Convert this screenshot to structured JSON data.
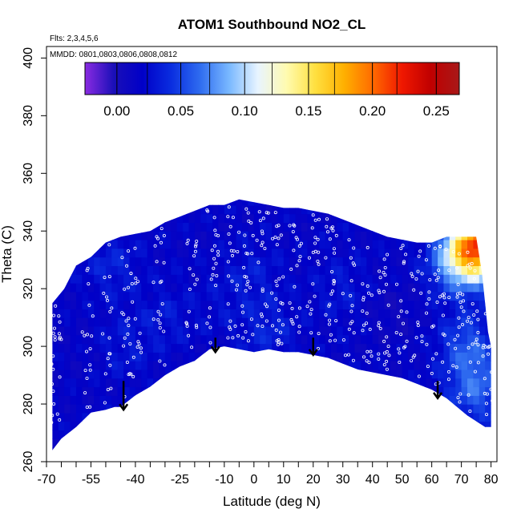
{
  "chart_data": {
    "type": "heatmap",
    "title": "ATOM1 Southbound NO2_CL",
    "annotations": {
      "flights": "Flts: 2,3,4,5,6",
      "dates": "MMDD: 0801,0803,0806,0808,0812"
    },
    "xlabel": "Latitude (deg N)",
    "ylabel": "Theta (C)",
    "xlim": [
      -70,
      82
    ],
    "ylim": [
      260,
      404
    ],
    "x_ticks": [
      -70,
      -55,
      -40,
      -25,
      -10,
      0,
      10,
      20,
      30,
      40,
      50,
      60,
      70,
      80
    ],
    "x_tick_labels": [
      "-70",
      "-55",
      "-40",
      "-25",
      "-10",
      "0",
      "10",
      "20",
      "30",
      "40",
      "50",
      "60",
      "70",
      "80"
    ],
    "x_minor_ticks": [
      -65,
      -60,
      -50,
      -45,
      -35,
      -30,
      -20,
      -15,
      -5,
      5,
      15,
      25,
      35,
      45,
      55,
      65,
      75
    ],
    "y_ticks": [
      260,
      280,
      300,
      320,
      340,
      360,
      380,
      400
    ],
    "y_tick_labels": [
      "260",
      "280",
      "300",
      "320",
      "340",
      "360",
      "380",
      "400"
    ],
    "colorbar": {
      "ticks": [
        0.0,
        0.05,
        0.1,
        0.15,
        0.2,
        0.25
      ],
      "tick_labels": [
        "0.00",
        "0.05",
        "0.10",
        "0.15",
        "0.20",
        "0.25"
      ],
      "range": [
        -0.025,
        0.268
      ],
      "colors": [
        "#8a2be2",
        "#1a0fb8",
        "#0000c8",
        "#0a2ee0",
        "#2f6cf0",
        "#79b8ff",
        "#e8f4ff",
        "#fffbb0",
        "#ffe040",
        "#ffb000",
        "#ff6a00",
        "#f01800",
        "#c00000",
        "#a81818"
      ]
    },
    "upper_boundary": [
      {
        "x": -68,
        "y": 315
      },
      {
        "x": -64,
        "y": 320
      },
      {
        "x": -60,
        "y": 328
      },
      {
        "x": -55,
        "y": 331
      },
      {
        "x": -50,
        "y": 336
      },
      {
        "x": -45,
        "y": 338
      },
      {
        "x": -40,
        "y": 339
      },
      {
        "x": -35,
        "y": 340
      },
      {
        "x": -30,
        "y": 343
      },
      {
        "x": -25,
        "y": 345
      },
      {
        "x": -20,
        "y": 347
      },
      {
        "x": -15,
        "y": 349
      },
      {
        "x": -10,
        "y": 349
      },
      {
        "x": -5,
        "y": 351
      },
      {
        "x": 0,
        "y": 350
      },
      {
        "x": 5,
        "y": 349
      },
      {
        "x": 10,
        "y": 348
      },
      {
        "x": 15,
        "y": 348
      },
      {
        "x": 20,
        "y": 347
      },
      {
        "x": 25,
        "y": 346
      },
      {
        "x": 30,
        "y": 344
      },
      {
        "x": 35,
        "y": 342
      },
      {
        "x": 40,
        "y": 340
      },
      {
        "x": 45,
        "y": 338
      },
      {
        "x": 50,
        "y": 337
      },
      {
        "x": 55,
        "y": 336
      },
      {
        "x": 60,
        "y": 336
      },
      {
        "x": 65,
        "y": 338
      },
      {
        "x": 70,
        "y": 338
      },
      {
        "x": 75,
        "y": 338
      },
      {
        "x": 77,
        "y": 325
      },
      {
        "x": 79,
        "y": 305
      },
      {
        "x": 80,
        "y": 300
      }
    ],
    "lower_boundary": [
      {
        "x": 80,
        "y": 272
      },
      {
        "x": 78,
        "y": 272
      },
      {
        "x": 72,
        "y": 276
      },
      {
        "x": 65,
        "y": 282
      },
      {
        "x": 60,
        "y": 285
      },
      {
        "x": 55,
        "y": 287
      },
      {
        "x": 50,
        "y": 289
      },
      {
        "x": 45,
        "y": 290
      },
      {
        "x": 40,
        "y": 291
      },
      {
        "x": 35,
        "y": 292
      },
      {
        "x": 30,
        "y": 294
      },
      {
        "x": 25,
        "y": 296
      },
      {
        "x": 20,
        "y": 297
      },
      {
        "x": 15,
        "y": 298
      },
      {
        "x": 10,
        "y": 298
      },
      {
        "x": 5,
        "y": 299
      },
      {
        "x": 0,
        "y": 298
      },
      {
        "x": -5,
        "y": 299
      },
      {
        "x": -10,
        "y": 300
      },
      {
        "x": -15,
        "y": 299
      },
      {
        "x": -20,
        "y": 295
      },
      {
        "x": -25,
        "y": 293
      },
      {
        "x": -30,
        "y": 290
      },
      {
        "x": -35,
        "y": 286
      },
      {
        "x": -40,
        "y": 283
      },
      {
        "x": -45,
        "y": 279
      },
      {
        "x": -47,
        "y": 279
      },
      {
        "x": -50,
        "y": 278
      },
      {
        "x": -55,
        "y": 277
      },
      {
        "x": -60,
        "y": 272
      },
      {
        "x": -65,
        "y": 268
      },
      {
        "x": -68,
        "y": 264
      }
    ],
    "field_features": [
      {
        "x": -58,
        "y": 300,
        "value": 0.015
      },
      {
        "x": -48,
        "y": 328,
        "value": 0.035
      },
      {
        "x": -44,
        "y": 300,
        "value": 0.03
      },
      {
        "x": -30,
        "y": 310,
        "value": 0.03
      },
      {
        "x": -10,
        "y": 315,
        "value": 0.025
      },
      {
        "x": 0,
        "y": 325,
        "value": 0.03
      },
      {
        "x": 5,
        "y": 305,
        "value": 0.035
      },
      {
        "x": 30,
        "y": 320,
        "value": 0.03
      },
      {
        "x": 47,
        "y": 312,
        "value": 0.008
      },
      {
        "x": 68,
        "y": 330,
        "value": 0.07
      },
      {
        "x": 74,
        "y": 333,
        "value": 0.085
      },
      {
        "x": 77,
        "y": 336,
        "value": 0.14
      },
      {
        "x": 72,
        "y": 300,
        "value": 0.055
      },
      {
        "x": 75,
        "y": 285,
        "value": 0.06
      }
    ],
    "arrows": [
      {
        "x": -44,
        "y_top": 288,
        "y_tip": 278
      },
      {
        "x": -13,
        "y_top": 303,
        "y_tip": 298
      },
      {
        "x": 20,
        "y_top": 303,
        "y_tip": 297
      },
      {
        "x": 62,
        "y_top": 288,
        "y_tip": 282
      }
    ]
  }
}
